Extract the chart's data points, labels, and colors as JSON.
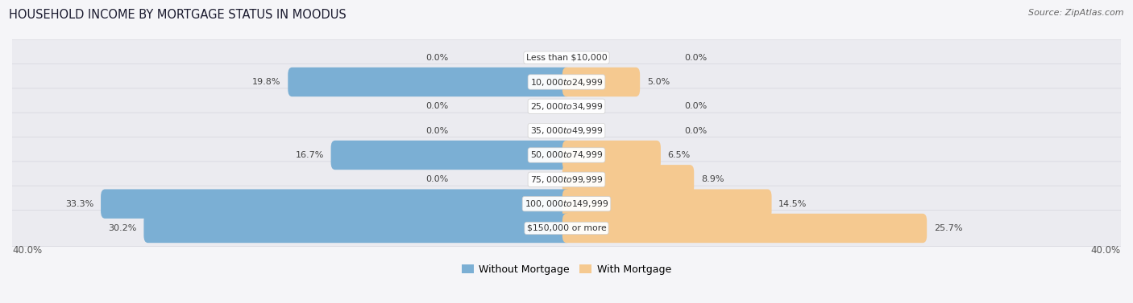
{
  "title": "HOUSEHOLD INCOME BY MORTGAGE STATUS IN MOODUS",
  "source": "Source: ZipAtlas.com",
  "categories": [
    "Less than $10,000",
    "$10,000 to $24,999",
    "$25,000 to $34,999",
    "$35,000 to $49,999",
    "$50,000 to $74,999",
    "$75,000 to $99,999",
    "$100,000 to $149,999",
    "$150,000 or more"
  ],
  "without_mortgage": [
    0.0,
    19.8,
    0.0,
    0.0,
    16.7,
    0.0,
    33.3,
    30.2
  ],
  "with_mortgage": [
    0.0,
    5.0,
    0.0,
    0.0,
    6.5,
    8.9,
    14.5,
    25.7
  ],
  "color_without": "#7bafd4",
  "color_with": "#f5c990",
  "axis_max": 40.0,
  "background_color": "#f5f5f8",
  "row_bg_color": "#ebebf0",
  "row_border_color": "#d8d8e0",
  "legend_labels": [
    "Without Mortgage",
    "With Mortgage"
  ]
}
